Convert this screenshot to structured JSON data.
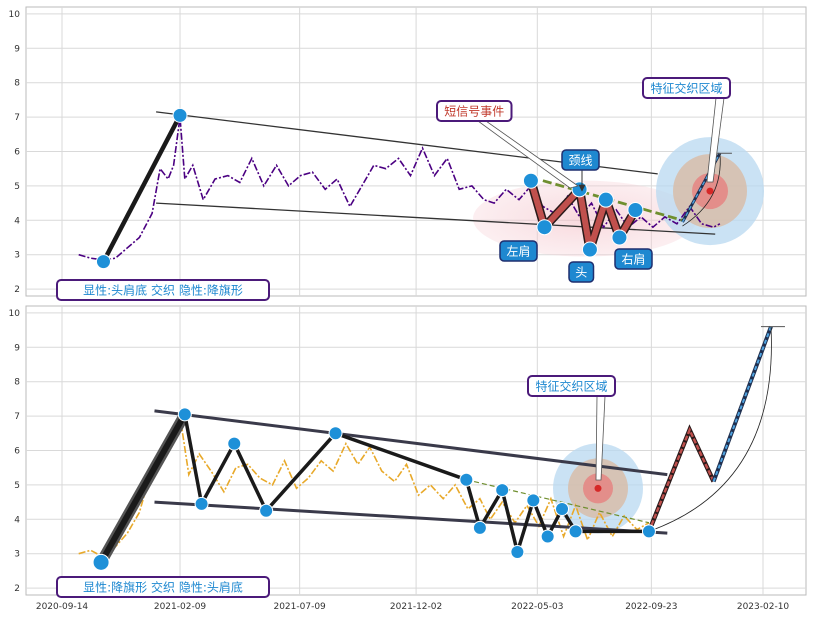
{
  "chart_data": [
    {
      "type": "line",
      "panel": "top",
      "ylim": [
        1.8,
        10.2
      ],
      "y_ticks": [
        "2",
        "3",
        "4",
        "5",
        "6",
        "7",
        "8",
        "9",
        "10"
      ],
      "grid": true,
      "series": [
        {
          "style": "dash-dot",
          "color": "#4b0082",
          "x": [
            "2020-10-05",
            "2020-10-20",
            "2020-11-05",
            "2020-11-20",
            "2020-12-05",
            "2020-12-20",
            "2021-01-05",
            "2021-01-15",
            "2021-01-25",
            "2021-02-01",
            "2021-02-09",
            "2021-02-15",
            "2021-02-25",
            "2021-03-10",
            "2021-03-25",
            "2021-04-10",
            "2021-04-25",
            "2021-05-10",
            "2021-05-25",
            "2021-06-10",
            "2021-06-25",
            "2021-07-10",
            "2021-07-25",
            "2021-08-10",
            "2021-08-25",
            "2021-09-10",
            "2021-09-25",
            "2021-10-10",
            "2021-10-25",
            "2021-11-10",
            "2021-11-25",
            "2021-12-10",
            "2021-12-25",
            "2022-01-10",
            "2022-01-25",
            "2022-02-10",
            "2022-02-25",
            "2022-03-10",
            "2022-03-25",
            "2022-04-10",
            "2022-04-25",
            "2022-05-10",
            "2022-05-25",
            "2022-06-10",
            "2022-06-25",
            "2022-07-10",
            "2022-07-25",
            "2022-08-10",
            "2022-08-25",
            "2022-09-10",
            "2022-09-25",
            "2022-10-10",
            "2022-10-25",
            "2022-11-10",
            "2022-11-25",
            "2022-12-10",
            "2022-12-18"
          ],
          "y": [
            3.0,
            2.9,
            2.85,
            2.9,
            3.2,
            3.5,
            4.2,
            5.5,
            5.2,
            5.6,
            7.0,
            5.2,
            5.6,
            4.6,
            5.2,
            5.3,
            5.1,
            5.8,
            5.0,
            5.6,
            5.0,
            5.3,
            5.4,
            4.9,
            5.2,
            4.4,
            5.0,
            5.6,
            5.5,
            5.8,
            5.3,
            6.1,
            5.3,
            5.8,
            4.9,
            5.0,
            4.6,
            4.5,
            4.9,
            4.6,
            5.0,
            4.4,
            4.2,
            4.7,
            4.1,
            4.5,
            3.8,
            4.3,
            3.8,
            4.1,
            3.8,
            4.1,
            3.9,
            4.4,
            3.9,
            3.8,
            3.9
          ]
        }
      ],
      "pattern": {
        "name": "头肩底",
        "x": [
          "2020-11-05",
          "2021-02-09"
        ],
        "y": [
          2.8,
          7.05
        ]
      },
      "hs_points": {
        "x": [
          "2022-04-25",
          "2022-05-12",
          "2022-06-25",
          "2022-07-08",
          "2022-07-28",
          "2022-08-14",
          "2022-09-03"
        ],
        "y": [
          5.15,
          3.8,
          4.9,
          3.15,
          4.6,
          3.5,
          4.3
        ]
      },
      "channel_lines": [
        {
          "x": [
            "2021-01-10",
            "2022-10-01"
          ],
          "y": [
            7.15,
            5.35
          ]
        },
        {
          "x": [
            "2021-01-10",
            "2022-12-12"
          ],
          "y": [
            4.5,
            3.6
          ]
        }
      ],
      "neckline": {
        "x": [
          "2022-05-10",
          "2022-11-01"
        ],
        "y": [
          5.15,
          4.0
        ]
      },
      "projection": {
        "x": [
          "2022-11-01",
          "2022-12-18"
        ],
        "y": [
          3.95,
          5.95
        ]
      },
      "annotations": {
        "left_shoulder": "左肩",
        "head": "头",
        "right_shoulder": "右肩",
        "neckline": "颈线",
        "short_signal": "短信号事件",
        "zone": "特征交织区域",
        "legend": "显性:头肩底 交织 隐性:降旗形"
      }
    },
    {
      "type": "line",
      "panel": "bottom",
      "ylim": [
        1.8,
        10.2
      ],
      "y_ticks": [
        "2",
        "3",
        "4",
        "5",
        "6",
        "7",
        "8",
        "9",
        "10"
      ],
      "x_ticks": [
        "2020-09-14",
        "2021-02-09",
        "2021-07-09",
        "2021-12-02",
        "2022-05-03",
        "2022-09-23",
        "2023-02-10"
      ],
      "grid": true,
      "series": [
        {
          "style": "dash-dot",
          "color": "#e8a92a",
          "x": [
            "2020-10-05",
            "2020-10-20",
            "2020-11-05",
            "2020-11-20",
            "2020-12-05",
            "2020-12-20",
            "2021-01-05",
            "2021-01-20",
            "2021-02-01",
            "2021-02-09",
            "2021-02-20",
            "2021-03-05",
            "2021-03-20",
            "2021-04-05",
            "2021-04-20",
            "2021-05-05",
            "2021-05-20",
            "2021-06-05",
            "2021-06-20",
            "2021-07-05",
            "2021-07-20",
            "2021-08-05",
            "2021-08-20",
            "2021-09-05",
            "2021-09-20",
            "2021-10-05",
            "2021-10-20",
            "2021-11-05",
            "2021-11-20",
            "2021-12-05",
            "2021-12-20",
            "2022-01-05",
            "2022-01-20",
            "2022-02-05",
            "2022-02-20",
            "2022-03-05",
            "2022-03-20",
            "2022-04-05",
            "2022-04-20",
            "2022-05-05",
            "2022-05-20",
            "2022-06-05",
            "2022-06-20",
            "2022-07-05",
            "2022-07-20",
            "2022-08-05",
            "2022-08-20",
            "2022-09-05",
            "2022-09-20"
          ],
          "y": [
            3.0,
            3.1,
            2.9,
            3.2,
            3.6,
            4.2,
            5.5,
            6.0,
            6.4,
            7.0,
            5.3,
            5.9,
            5.4,
            4.8,
            5.5,
            5.6,
            5.2,
            5.0,
            5.7,
            4.9,
            5.2,
            5.7,
            5.4,
            6.2,
            5.6,
            6.1,
            5.4,
            5.1,
            5.6,
            4.7,
            5.0,
            4.6,
            5.0,
            4.3,
            4.6,
            4.0,
            4.5,
            3.9,
            4.4,
            3.8,
            4.6,
            3.5,
            4.4,
            3.4,
            4.2,
            3.5,
            4.1,
            3.7,
            3.9
          ]
        }
      ],
      "pattern": {
        "name": "降旗形",
        "x": [
          "2020-11-02",
          "2021-02-15",
          "2021-03-08",
          "2021-04-18",
          "2021-05-28",
          "2021-08-23",
          "2022-02-03",
          "2022-02-20",
          "2022-03-20",
          "2022-04-08",
          "2022-04-28",
          "2022-05-16",
          "2022-06-03",
          "2022-06-20",
          "2022-09-20"
        ],
        "y": [
          2.75,
          7.05,
          4.45,
          6.2,
          4.25,
          6.5,
          5.15,
          3.75,
          4.85,
          3.05,
          4.55,
          3.5,
          4.3,
          3.65,
          3.65
        ]
      },
      "channel_lines": [
        {
          "x": [
            "2021-01-08",
            "2022-10-13"
          ],
          "y": [
            7.15,
            5.3
          ]
        },
        {
          "x": [
            "2021-01-08",
            "2022-10-13"
          ],
          "y": [
            4.5,
            3.6
          ]
        }
      ],
      "projection": {
        "x": [
          "2022-09-20",
          "2022-11-10",
          "2022-12-10",
          "2023-02-20"
        ],
        "y": [
          3.65,
          6.6,
          5.1,
          9.6
        ]
      },
      "annotations": {
        "zone": "特征交织区域",
        "legend": "显性:降旗形 交织 隐性:头肩底"
      }
    }
  ]
}
